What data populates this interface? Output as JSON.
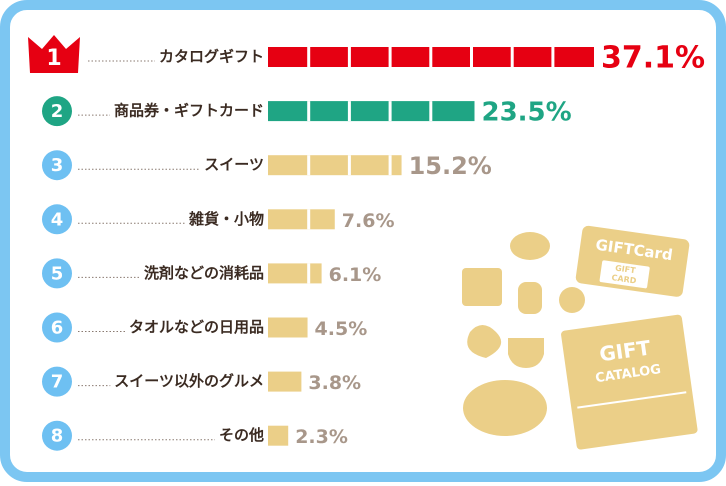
{
  "chart_data": {
    "type": "bar",
    "ranks": [
      "1",
      "2",
      "3",
      "4",
      "5",
      "6",
      "7",
      "8"
    ],
    "categories": [
      "カタログギフト",
      "商品券・ギフトカード",
      "スイーツ",
      "雑貨・小物",
      "洗剤などの消耗品",
      "タオルなどの日用品",
      "スイーツ以外のグルメ",
      "その他"
    ],
    "values": [
      37.1,
      23.5,
      15.2,
      7.6,
      6.1,
      4.5,
      3.8,
      2.3
    ],
    "value_labels": [
      "37.1%",
      "23.5%",
      "15.2%",
      "7.6%",
      "6.1%",
      "4.5%",
      "3.8%",
      "2.3%"
    ],
    "colors": [
      "#e60012",
      "#1fa584",
      "#ebcf88",
      "#ebcf88",
      "#ebcf88",
      "#ebcf88",
      "#ebcf88",
      "#ebcf88"
    ],
    "label_colors": [
      "#e60012",
      "#1fa584",
      "#a8978a",
      "#a8978a",
      "#a8978a",
      "#a8978a",
      "#a8978a",
      "#a8978a"
    ],
    "badge_colors": [
      "#e60012",
      "#1fa584",
      "#6ec0f2",
      "#6ec0f2",
      "#6ec0f2",
      "#6ec0f2",
      "#6ec0f2",
      "#6ec0f2"
    ]
  },
  "illustration": {
    "card_title": "GIFTCard",
    "card_inner": [
      "GIFT",
      "CARD"
    ],
    "catalog": [
      "GIFT",
      "CATALOG"
    ]
  }
}
